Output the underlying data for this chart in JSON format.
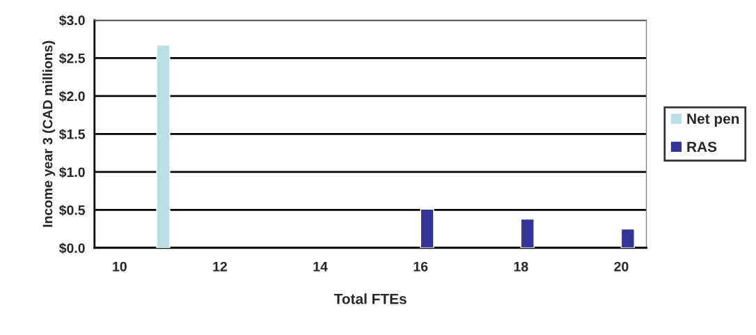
{
  "chart_data": {
    "type": "bar",
    "xlabel": "Total FTEs",
    "ylabel": "Income year 3 (CAD millions)",
    "categories": [
      "10",
      null,
      "12",
      null,
      "14",
      null,
      "16",
      null,
      "18",
      null,
      "20"
    ],
    "series": [
      {
        "name": "Net pen",
        "color": "#bbe0e3",
        "values": [
          null,
          2.67,
          null,
          null,
          null,
          null,
          null,
          null,
          null,
          null,
          null
        ]
      },
      {
        "name": "RAS",
        "color": "#333399",
        "values": [
          null,
          null,
          null,
          null,
          null,
          null,
          0.51,
          null,
          0.38,
          null,
          0.25
        ]
      }
    ],
    "ylim": [
      0,
      3
    ],
    "yticks": [
      {
        "value": 0,
        "label": "$0.0"
      },
      {
        "value": 0.5,
        "label": "$0.5"
      },
      {
        "value": 1,
        "label": "$1.0"
      },
      {
        "value": 1.5,
        "label": "$1.5"
      },
      {
        "value": 2,
        "label": "$2.0"
      },
      {
        "value": 2.5,
        "label": "$2.5"
      },
      {
        "value": 3,
        "label": "$3.0"
      }
    ],
    "grid": "y",
    "legend": "right"
  }
}
